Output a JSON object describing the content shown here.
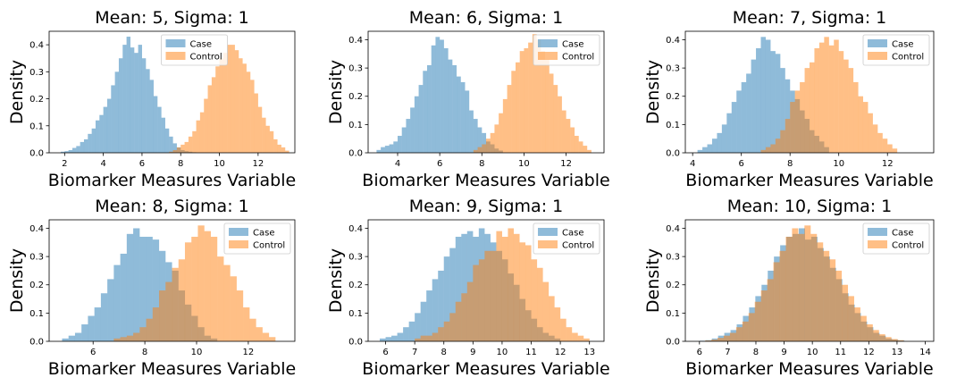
{
  "colors": {
    "case": "#1f77b4",
    "control": "#ff7f0e",
    "bar_alpha": 0.5
  },
  "chart_data": [
    {
      "type": "histogram",
      "title": "Mean: 5, Sigma: 1",
      "xlabel": "Biomarker Measures Variable",
      "ylabel": "Density",
      "xlim": [
        1.2,
        13.9
      ],
      "ylim": [
        0,
        0.45
      ],
      "xticks": [
        2,
        4,
        6,
        8,
        10,
        12
      ],
      "yticks": [
        0.0,
        0.1,
        0.2,
        0.3,
        0.4
      ],
      "legend": "upper-middle",
      "series": [
        {
          "name": "Case",
          "x_start": 1.8,
          "bin_width": 0.2,
          "values": [
            0.004,
            0.006,
            0.01,
            0.018,
            0.025,
            0.04,
            0.05,
            0.07,
            0.09,
            0.12,
            0.14,
            0.17,
            0.2,
            0.25,
            0.3,
            0.35,
            0.4,
            0.43,
            0.39,
            0.37,
            0.4,
            0.35,
            0.31,
            0.27,
            0.21,
            0.17,
            0.13,
            0.09,
            0.06,
            0.035,
            0.02,
            0.01,
            0.006,
            0.004,
            0.002
          ]
        },
        {
          "name": "Control",
          "x_start": 7.4,
          "bin_width": 0.2,
          "values": [
            0.004,
            0.01,
            0.02,
            0.03,
            0.04,
            0.06,
            0.08,
            0.12,
            0.15,
            0.2,
            0.25,
            0.28,
            0.32,
            0.35,
            0.37,
            0.4,
            0.4,
            0.38,
            0.35,
            0.33,
            0.3,
            0.27,
            0.22,
            0.17,
            0.13,
            0.1,
            0.08,
            0.05,
            0.03,
            0.02,
            0.008
          ]
        }
      ]
    },
    {
      "type": "histogram",
      "title": "Mean: 6, Sigma: 1",
      "xlabel": "Biomarker Measures Variable",
      "ylabel": "Density",
      "xlim": [
        2.6,
        13.8
      ],
      "ylim": [
        0,
        0.43
      ],
      "xticks": [
        4,
        6,
        8,
        10,
        12
      ],
      "yticks": [
        0.0,
        0.1,
        0.2,
        0.3,
        0.4
      ],
      "legend": "top-right",
      "series": [
        {
          "name": "Case",
          "x_start": 3.0,
          "bin_width": 0.2,
          "values": [
            0.01,
            0.02,
            0.025,
            0.03,
            0.04,
            0.06,
            0.09,
            0.12,
            0.16,
            0.2,
            0.24,
            0.29,
            0.31,
            0.38,
            0.41,
            0.4,
            0.37,
            0.33,
            0.31,
            0.27,
            0.25,
            0.22,
            0.15,
            0.12,
            0.09,
            0.07,
            0.04,
            0.03,
            0.015,
            0.008
          ]
        },
        {
          "name": "Control",
          "x_start": 7.6,
          "bin_width": 0.2,
          "values": [
            0.01,
            0.02,
            0.03,
            0.05,
            0.07,
            0.1,
            0.14,
            0.19,
            0.24,
            0.29,
            0.32,
            0.36,
            0.37,
            0.39,
            0.42,
            0.4,
            0.36,
            0.33,
            0.28,
            0.24,
            0.2,
            0.15,
            0.12,
            0.09,
            0.06,
            0.04,
            0.025,
            0.01
          ]
        }
      ]
    },
    {
      "type": "histogram",
      "title": "Mean: 7, Sigma: 1",
      "xlabel": "Biomarker Measures Variable",
      "ylabel": "Density",
      "xlim": [
        3.7,
        13.9
      ],
      "ylim": [
        0,
        0.43
      ],
      "xticks": [
        4,
        6,
        8,
        10,
        12
      ],
      "yticks": [
        0.0,
        0.1,
        0.2,
        0.3,
        0.4
      ],
      "legend": "top-right",
      "series": [
        {
          "name": "Case",
          "x_start": 4.2,
          "bin_width": 0.2,
          "values": [
            0.01,
            0.02,
            0.03,
            0.05,
            0.07,
            0.1,
            0.14,
            0.18,
            0.22,
            0.25,
            0.28,
            0.33,
            0.37,
            0.41,
            0.4,
            0.36,
            0.35,
            0.3,
            0.26,
            0.22,
            0.19,
            0.15,
            0.12,
            0.08,
            0.06,
            0.04,
            0.02
          ]
        },
        {
          "name": "Control",
          "x_start": 6.8,
          "bin_width": 0.2,
          "values": [
            0.01,
            0.02,
            0.03,
            0.05,
            0.08,
            0.12,
            0.18,
            0.22,
            0.25,
            0.3,
            0.32,
            0.37,
            0.39,
            0.41,
            0.38,
            0.4,
            0.36,
            0.33,
            0.3,
            0.25,
            0.2,
            0.18,
            0.14,
            0.1,
            0.07,
            0.05,
            0.03,
            0.015
          ]
        }
      ]
    },
    {
      "type": "histogram",
      "title": "Mean: 8, Sigma: 1",
      "xlabel": "Biomarker Measures Variable",
      "ylabel": "Density",
      "xlim": [
        4.3,
        13.8
      ],
      "ylim": [
        0,
        0.43
      ],
      "xticks": [
        6,
        8,
        10,
        12
      ],
      "yticks": [
        0.0,
        0.1,
        0.2,
        0.3,
        0.4
      ],
      "legend": "top-right",
      "series": [
        {
          "name": "Case",
          "x_start": 4.8,
          "bin_width": 0.25,
          "values": [
            0.01,
            0.02,
            0.03,
            0.06,
            0.09,
            0.12,
            0.17,
            0.22,
            0.27,
            0.31,
            0.38,
            0.4,
            0.37,
            0.37,
            0.36,
            0.32,
            0.28,
            0.25,
            0.18,
            0.13,
            0.09,
            0.05,
            0.02,
            0.01
          ]
        },
        {
          "name": "Control",
          "x_start": 6.8,
          "bin_width": 0.25,
          "values": [
            0.01,
            0.015,
            0.02,
            0.03,
            0.05,
            0.08,
            0.12,
            0.18,
            0.21,
            0.26,
            0.29,
            0.35,
            0.37,
            0.41,
            0.39,
            0.37,
            0.3,
            0.27,
            0.23,
            0.18,
            0.12,
            0.08,
            0.05,
            0.03,
            0.015
          ]
        }
      ]
    },
    {
      "type": "histogram",
      "title": "Mean: 9, Sigma: 1",
      "xlabel": "Biomarker Measures Variable",
      "ylabel": "Density",
      "xlim": [
        5.4,
        13.5
      ],
      "ylim": [
        0,
        0.43
      ],
      "xticks": [
        6,
        7,
        8,
        9,
        10,
        11,
        12,
        13
      ],
      "yticks": [
        0.0,
        0.1,
        0.2,
        0.3,
        0.4
      ],
      "legend": "top-right",
      "series": [
        {
          "name": "Case",
          "x_start": 5.8,
          "bin_width": 0.2,
          "values": [
            0.01,
            0.015,
            0.02,
            0.03,
            0.05,
            0.07,
            0.1,
            0.14,
            0.18,
            0.22,
            0.25,
            0.3,
            0.33,
            0.37,
            0.38,
            0.39,
            0.37,
            0.4,
            0.38,
            0.35,
            0.32,
            0.29,
            0.24,
            0.2,
            0.15,
            0.11,
            0.08,
            0.05,
            0.03,
            0.02,
            0.01
          ]
        },
        {
          "name": "Control",
          "x_start": 7.0,
          "bin_width": 0.2,
          "values": [
            0.01,
            0.02,
            0.02,
            0.03,
            0.05,
            0.07,
            0.1,
            0.14,
            0.17,
            0.21,
            0.27,
            0.29,
            0.32,
            0.32,
            0.39,
            0.37,
            0.4,
            0.38,
            0.35,
            0.34,
            0.29,
            0.26,
            0.21,
            0.16,
            0.12,
            0.08,
            0.05,
            0.03,
            0.02,
            0.01
          ]
        }
      ]
    },
    {
      "type": "histogram",
      "title": "Mean: 10, Sigma: 1",
      "xlabel": "Biomarker Measures Variable",
      "ylabel": "Density",
      "xlim": [
        5.5,
        14.3
      ],
      "ylim": [
        0,
        0.43
      ],
      "xticks": [
        6,
        7,
        8,
        9,
        10,
        11,
        12,
        13,
        14
      ],
      "yticks": [
        0.0,
        0.1,
        0.2,
        0.3,
        0.4
      ],
      "legend": "top-right",
      "series": [
        {
          "name": "Case",
          "x_start": 6.0,
          "bin_width": 0.22,
          "values": [
            0.002,
            0.004,
            0.01,
            0.02,
            0.03,
            0.04,
            0.06,
            0.09,
            0.12,
            0.16,
            0.2,
            0.25,
            0.3,
            0.34,
            0.37,
            0.38,
            0.4,
            0.36,
            0.37,
            0.33,
            0.3,
            0.26,
            0.22,
            0.17,
            0.13,
            0.1,
            0.07,
            0.05,
            0.03,
            0.02,
            0.01,
            0.006,
            0.003
          ]
        },
        {
          "name": "Control",
          "x_start": 6.2,
          "bin_width": 0.22,
          "values": [
            0.003,
            0.006,
            0.012,
            0.02,
            0.03,
            0.05,
            0.07,
            0.1,
            0.14,
            0.18,
            0.22,
            0.28,
            0.32,
            0.37,
            0.4,
            0.38,
            0.41,
            0.38,
            0.35,
            0.32,
            0.29,
            0.25,
            0.2,
            0.16,
            0.12,
            0.09,
            0.06,
            0.04,
            0.025,
            0.015,
            0.008,
            0.004
          ]
        }
      ]
    }
  ]
}
